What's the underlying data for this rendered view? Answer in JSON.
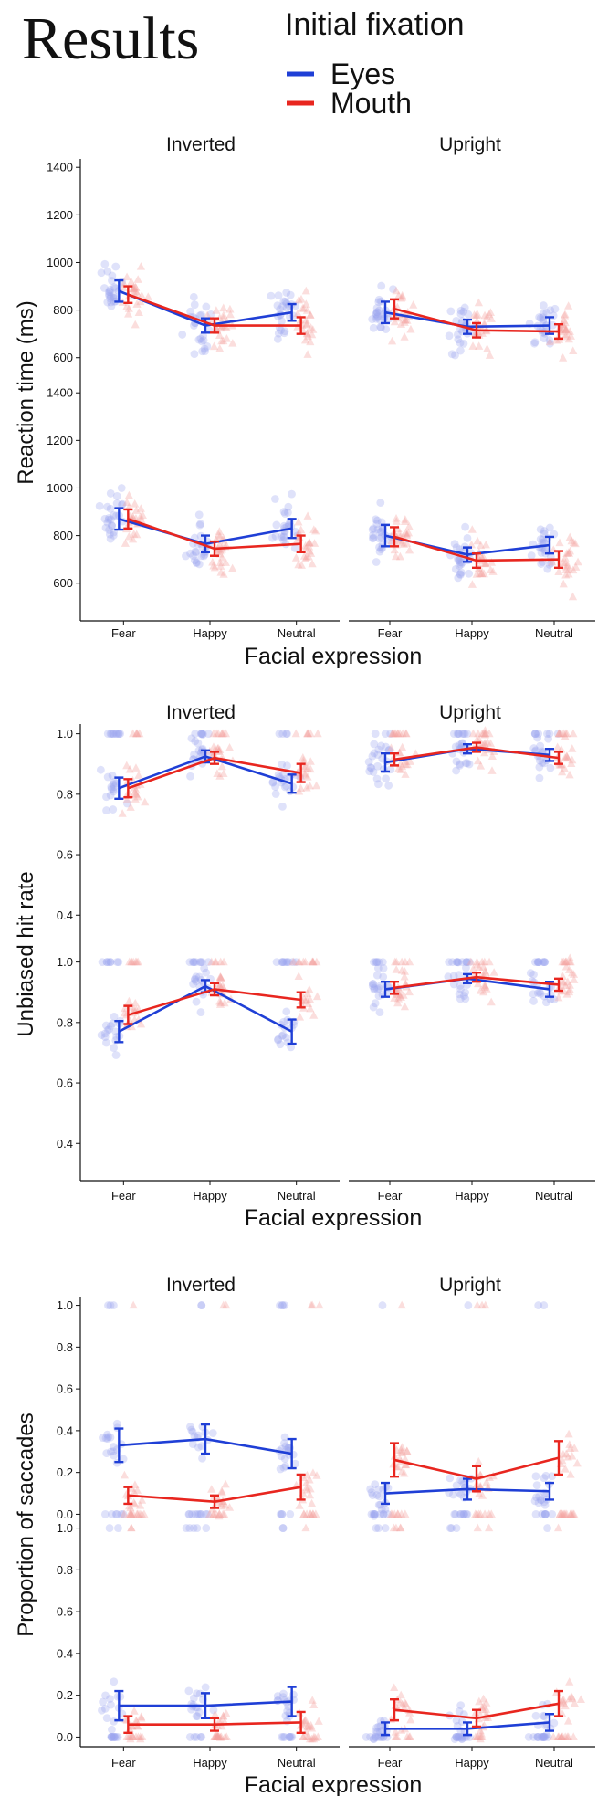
{
  "title": "Results",
  "legend": {
    "title": "Initial fixation",
    "items": [
      {
        "label": "Eyes",
        "color": "#1f3fd6"
      },
      {
        "label": "Mouth",
        "color": "#e8261f"
      }
    ]
  },
  "colors": {
    "eyes": "#1f3fd6",
    "mouth": "#e8261f",
    "eyes_scatter": "#9aa6ee",
    "mouth_scatter": "#f4a4a0"
  },
  "chart_data": [
    {
      "type": "line",
      "ylabel": "Reaction time (ms)",
      "xlabel": "Facial expression",
      "categories": [
        "Fear",
        "Happy",
        "Neutral"
      ],
      "ylim": [
        480,
        1420
      ],
      "yticks": [
        600,
        800,
        1000,
        1200,
        1400
      ],
      "columns": [
        "Inverted",
        "Upright"
      ],
      "panels": [
        {
          "column": "Inverted",
          "row": 1,
          "series": [
            {
              "name": "Eyes",
              "values": [
                880,
                735,
                790
              ],
              "err": [
                45,
                30,
                35
              ]
            },
            {
              "name": "Mouth",
              "values": [
                865,
                735,
                735
              ],
              "err": [
                35,
                30,
                35
              ]
            }
          ]
        },
        {
          "column": "Upright",
          "row": 1,
          "series": [
            {
              "name": "Eyes",
              "values": [
                790,
                730,
                735
              ],
              "err": [
                45,
                30,
                35
              ]
            },
            {
              "name": "Mouth",
              "values": [
                805,
                715,
                710
              ],
              "err": [
                40,
                30,
                30
              ]
            }
          ]
        },
        {
          "column": "Inverted",
          "row": 2,
          "series": [
            {
              "name": "Eyes",
              "values": [
                870,
                765,
                830
              ],
              "err": [
                45,
                35,
                40
              ]
            },
            {
              "name": "Mouth",
              "values": [
                870,
                745,
                765
              ],
              "err": [
                40,
                30,
                35
              ]
            }
          ]
        },
        {
          "column": "Upright",
          "row": 2,
          "series": [
            {
              "name": "Eyes",
              "values": [
                800,
                720,
                760
              ],
              "err": [
                45,
                30,
                35
              ]
            },
            {
              "name": "Mouth",
              "values": [
                795,
                695,
                700
              ],
              "err": [
                40,
                30,
                35
              ]
            }
          ]
        }
      ]
    },
    {
      "type": "line",
      "ylabel": "Unbiased hit rate",
      "xlabel": "Facial expression",
      "categories": [
        "Fear",
        "Happy",
        "Neutral"
      ],
      "ylim": [
        0.28,
        1.02
      ],
      "yticks": [
        0.4,
        0.6,
        0.8,
        1.0
      ],
      "yticklabels": [
        "0.4",
        "0.6",
        "0.8",
        "1.0"
      ],
      "columns": [
        "Inverted",
        "Upright"
      ],
      "panels": [
        {
          "column": "Inverted",
          "row": 1,
          "series": [
            {
              "name": "Eyes",
              "values": [
                0.82,
                0.925,
                0.835
              ],
              "err": [
                0.035,
                0.02,
                0.03
              ]
            },
            {
              "name": "Mouth",
              "values": [
                0.82,
                0.92,
                0.87
              ],
              "err": [
                0.03,
                0.02,
                0.03
              ]
            }
          ]
        },
        {
          "column": "Upright",
          "row": 1,
          "series": [
            {
              "name": "Eyes",
              "values": [
                0.905,
                0.95,
                0.93
              ],
              "err": [
                0.03,
                0.015,
                0.02
              ]
            },
            {
              "name": "Mouth",
              "values": [
                0.915,
                0.955,
                0.92
              ],
              "err": [
                0.02,
                0.015,
                0.02
              ]
            }
          ]
        },
        {
          "column": "Inverted",
          "row": 2,
          "series": [
            {
              "name": "Eyes",
              "values": [
                0.77,
                0.92,
                0.77
              ],
              "err": [
                0.035,
                0.02,
                0.04
              ]
            },
            {
              "name": "Mouth",
              "values": [
                0.825,
                0.91,
                0.875
              ],
              "err": [
                0.03,
                0.02,
                0.025
              ]
            }
          ]
        },
        {
          "column": "Upright",
          "row": 2,
          "series": [
            {
              "name": "Eyes",
              "values": [
                0.91,
                0.945,
                0.91
              ],
              "err": [
                0.025,
                0.015,
                0.025
              ]
            },
            {
              "name": "Mouth",
              "values": [
                0.915,
                0.95,
                0.925
              ],
              "err": [
                0.02,
                0.015,
                0.02
              ]
            }
          ]
        }
      ]
    },
    {
      "type": "line",
      "ylabel": "Proportion of saccades",
      "xlabel": "Facial expression",
      "categories": [
        "Fear",
        "Happy",
        "Neutral"
      ],
      "ylim": [
        -0.02,
        1.02
      ],
      "yticks": [
        0.0,
        0.2,
        0.4,
        0.6,
        0.8,
        1.0
      ],
      "yticklabels": [
        "0.0",
        "0.2",
        "0.4",
        "0.6",
        "0.8",
        "1.0"
      ],
      "columns": [
        "Inverted",
        "Upright"
      ],
      "panels": [
        {
          "column": "Inverted",
          "row": 1,
          "series": [
            {
              "name": "Eyes",
              "values": [
                0.33,
                0.36,
                0.29
              ],
              "err": [
                0.08,
                0.07,
                0.07
              ]
            },
            {
              "name": "Mouth",
              "values": [
                0.09,
                0.06,
                0.13
              ],
              "err": [
                0.04,
                0.03,
                0.06
              ]
            }
          ]
        },
        {
          "column": "Upright",
          "row": 1,
          "series": [
            {
              "name": "Eyes",
              "values": [
                0.1,
                0.12,
                0.11
              ],
              "err": [
                0.05,
                0.05,
                0.04
              ]
            },
            {
              "name": "Mouth",
              "values": [
                0.26,
                0.17,
                0.27
              ],
              "err": [
                0.08,
                0.06,
                0.08
              ]
            }
          ]
        },
        {
          "column": "Inverted",
          "row": 2,
          "series": [
            {
              "name": "Eyes",
              "values": [
                0.15,
                0.15,
                0.17
              ],
              "err": [
                0.07,
                0.06,
                0.07
              ]
            },
            {
              "name": "Mouth",
              "values": [
                0.06,
                0.06,
                0.07
              ],
              "err": [
                0.04,
                0.03,
                0.05
              ]
            }
          ]
        },
        {
          "column": "Upright",
          "row": 2,
          "series": [
            {
              "name": "Eyes",
              "values": [
                0.04,
                0.04,
                0.07
              ],
              "err": [
                0.03,
                0.03,
                0.04
              ]
            },
            {
              "name": "Mouth",
              "values": [
                0.13,
                0.09,
                0.16
              ],
              "err": [
                0.05,
                0.04,
                0.06
              ]
            }
          ]
        }
      ]
    }
  ]
}
